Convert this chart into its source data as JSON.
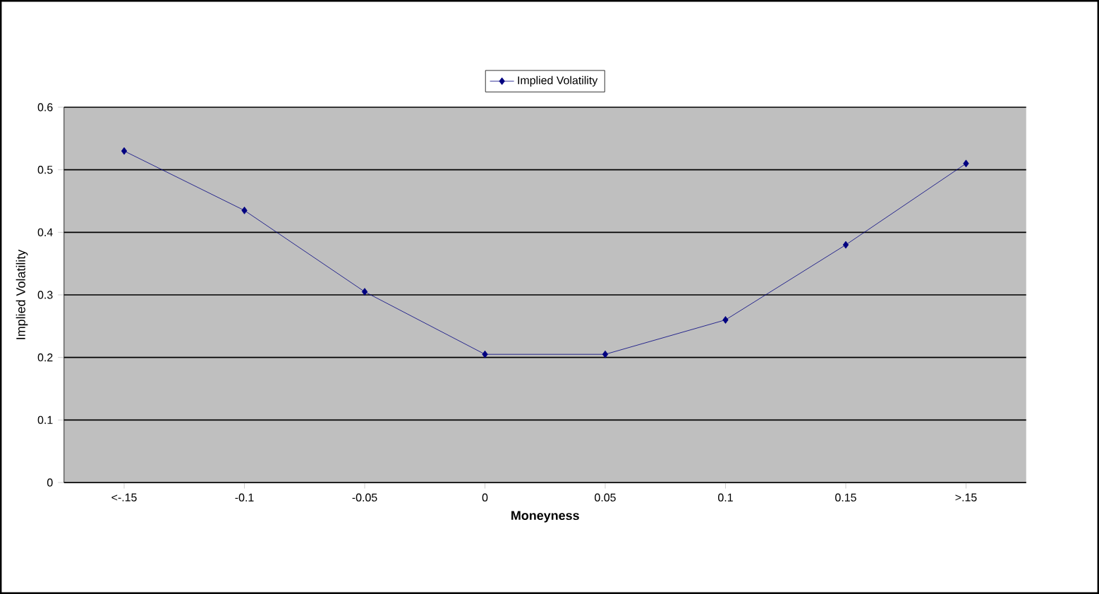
{
  "chart_data": {
    "type": "line",
    "xlabel": "Moneyness",
    "ylabel": "Implied Volatility",
    "categories": [
      "<-.15",
      "-0.1",
      "-0.05",
      "0",
      "0.05",
      "0.1",
      "0.15",
      ">.15"
    ],
    "series": [
      {
        "name": "Implied Volatility",
        "color": "#000080",
        "values": [
          0.53,
          0.435,
          0.305,
          0.205,
          0.205,
          0.26,
          0.38,
          0.51
        ]
      }
    ],
    "ylim": [
      0,
      0.6
    ],
    "yticks": [
      0,
      0.1,
      0.2,
      0.3,
      0.4,
      0.5,
      0.6
    ],
    "grid": "y",
    "legend": "top",
    "marker": "diamond",
    "line_style": "solid"
  }
}
